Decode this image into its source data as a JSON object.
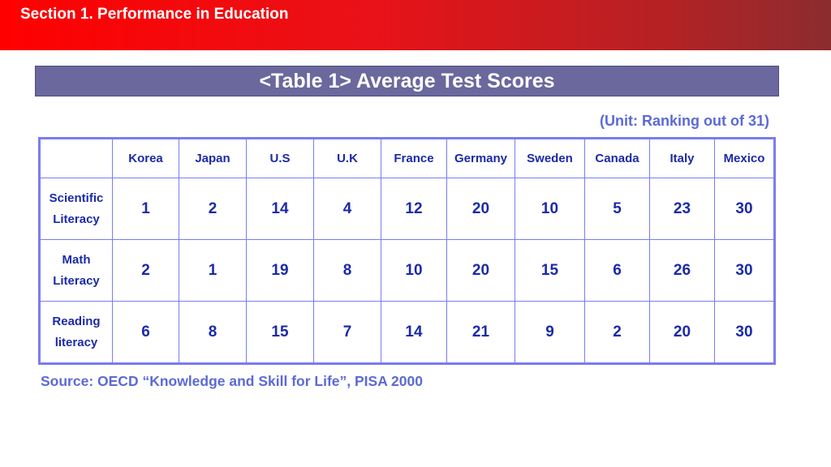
{
  "header": {
    "section_title": "Section 1. Performance in Education"
  },
  "title": "<Table 1> Average Test Scores",
  "unit_note": "(Unit: Ranking out of 31)",
  "table": {
    "columns": [
      "Korea",
      "Japan",
      "U.S",
      "U.K",
      "France",
      "Germany",
      "Sweden",
      "Canada",
      "Italy",
      "Mexico"
    ],
    "rows": [
      {
        "label_line1": "Scientific",
        "label_line2": "Literacy",
        "values": [
          "1",
          "2",
          "14",
          "4",
          "12",
          "20",
          "10",
          "5",
          "23",
          "30"
        ]
      },
      {
        "label_line1": "Math",
        "label_line2": "Literacy",
        "values": [
          "2",
          "1",
          "19",
          "8",
          "10",
          "20",
          "15",
          "6",
          "26",
          "30"
        ]
      },
      {
        "label_line1": "Reading",
        "label_line2": "literacy",
        "values": [
          "6",
          "8",
          "15",
          "7",
          "14",
          "21",
          "9",
          "2",
          "20",
          "30"
        ]
      }
    ]
  },
  "source": "Source: OECD “Knowledge and Skill for Life”, PISA 2000",
  "colors": {
    "header_red": "#ff0000",
    "header_dark": "#8b2c2f",
    "title_bar": "#6a689d",
    "table_border": "#7a7cf0",
    "table_text": "#1b2aa8",
    "note_text": "#5b6ad6"
  }
}
